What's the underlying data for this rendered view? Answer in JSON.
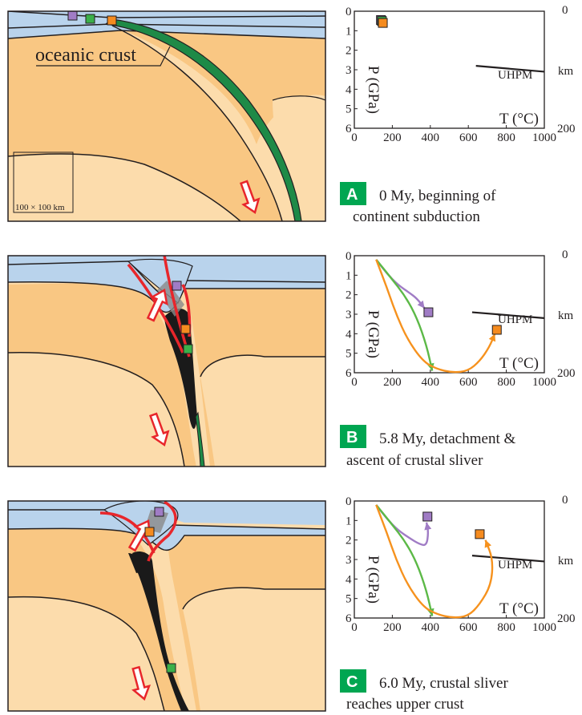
{
  "colors": {
    "water": "#b9d3ec",
    "crust_light": "#fcdcac",
    "crust_mid": "#f9c783",
    "ocean_crust": "#1e8a47",
    "sliver": "#1a1a1a",
    "fault": "#e8262b",
    "arrow": "#e8262b",
    "marker_purple": "#a07cc5",
    "marker_green": "#3bb04a",
    "marker_orange": "#f58b1f",
    "path_purple": "#a07cc5",
    "path_green": "#5cb947",
    "path_orange": "#f6921e",
    "badge": "#00a651"
  },
  "common": {
    "y_label": "P (GPa)",
    "x_label": "T (°C)",
    "km_label": "km",
    "uhpm_label": "UHPM",
    "y_ticks": [
      "0",
      "1",
      "2",
      "3",
      "4",
      "5",
      "6"
    ],
    "x_ticks": [
      "0",
      "200",
      "400",
      "600",
      "800",
      "1000"
    ],
    "right_ticks": [
      "0",
      "200"
    ]
  },
  "panels": [
    {
      "badge": "A",
      "caption_line1": "0 My, beginning of",
      "caption_line2": "continent subduction",
      "section_label": "oceanic crust",
      "scale_label": "100 × 100 km"
    },
    {
      "badge": "B",
      "caption_line1": "5.8 My, detachment &",
      "caption_line2": "ascent of crustal sliver"
    },
    {
      "badge": "C",
      "caption_line1": "6.0 My, crustal sliver",
      "caption_line2": "reaches upper crust"
    }
  ],
  "chart_data": [
    {
      "type": "scatter",
      "xlabel": "T (°C)",
      "ylabel": "P (GPa)",
      "xlim": [
        0,
        1000
      ],
      "ylim": [
        6,
        0
      ],
      "secondary_y_label": "km",
      "secondary_y_ticks": [
        0,
        200
      ],
      "reference_line": {
        "name": "UHPM",
        "x": [
          640,
          1000
        ],
        "y": [
          2.8,
          3.1
        ]
      },
      "series": [
        {
          "name": "",
          "color": "purple",
          "x": [
            140
          ],
          "y": [
            0.45
          ]
        },
        {
          "name": "",
          "color": "green",
          "x": [
            145
          ],
          "y": [
            0.5
          ]
        },
        {
          "name": "",
          "color": "orange",
          "x": [
            150
          ],
          "y": [
            0.6
          ]
        }
      ]
    },
    {
      "type": "line",
      "xlabel": "T (°C)",
      "ylabel": "P (GPa)",
      "xlim": [
        0,
        1000
      ],
      "ylim": [
        6,
        0
      ],
      "secondary_y_label": "km",
      "secondary_y_ticks": [
        0,
        200
      ],
      "reference_line": {
        "name": "UHPM",
        "x": [
          620,
          1000
        ],
        "y": [
          2.9,
          3.2
        ]
      },
      "series": [
        {
          "name": "",
          "color": "purple",
          "x": [
            115,
            170,
            230,
            290,
            330,
            370
          ],
          "y": [
            0.2,
            0.9,
            1.5,
            1.9,
            2.2,
            2.7
          ],
          "end_marker": {
            "x": [
              390
            ],
            "y": [
              2.9
            ]
          }
        },
        {
          "name": "",
          "color": "green",
          "x": [
            115,
            190,
            270,
            330,
            380,
            410
          ],
          "y": [
            0.2,
            1.1,
            2.1,
            3.2,
            4.6,
            5.9
          ]
        },
        {
          "name": "",
          "color": "orange",
          "x": [
            115,
            170,
            220,
            280,
            360,
            430,
            520,
            600,
            660,
            710,
            740
          ],
          "y": [
            0.2,
            1.6,
            3.0,
            4.3,
            5.4,
            5.8,
            6.0,
            5.9,
            5.4,
            4.7,
            4.0
          ],
          "end_marker": {
            "x": [
              750
            ],
            "y": [
              3.8
            ]
          }
        }
      ]
    },
    {
      "type": "line",
      "xlabel": "T (°C)",
      "ylabel": "P (GPa)",
      "xlim": [
        0,
        1000
      ],
      "ylim": [
        6,
        0
      ],
      "secondary_y_label": "km",
      "secondary_y_ticks": [
        0,
        200
      ],
      "reference_line": {
        "name": "UHPM",
        "x": [
          620,
          1000
        ],
        "y": [
          2.8,
          3.1
        ]
      },
      "series": [
        {
          "name": "",
          "color": "purple",
          "x": [
            115,
            170,
            230,
            290,
            340,
            380,
            390,
            380
          ],
          "y": [
            0.2,
            0.9,
            1.5,
            1.9,
            2.2,
            2.3,
            1.6,
            1.1
          ],
          "end_marker": {
            "x": [
              385
            ],
            "y": [
              0.8
            ]
          }
        },
        {
          "name": "",
          "color": "green",
          "x": [
            115,
            190,
            270,
            330,
            380,
            410
          ],
          "y": [
            0.2,
            1.1,
            2.1,
            3.2,
            4.6,
            5.9
          ]
        },
        {
          "name": "",
          "color": "orange",
          "x": [
            115,
            170,
            220,
            280,
            360,
            430,
            520,
            600,
            660,
            720,
            730,
            690
          ],
          "y": [
            0.2,
            1.6,
            3.0,
            4.3,
            5.4,
            5.8,
            6.0,
            5.9,
            5.3,
            4.3,
            3.0,
            2.0
          ],
          "end_marker": {
            "x": [
              660
            ],
            "y": [
              1.7
            ]
          }
        }
      ]
    }
  ]
}
